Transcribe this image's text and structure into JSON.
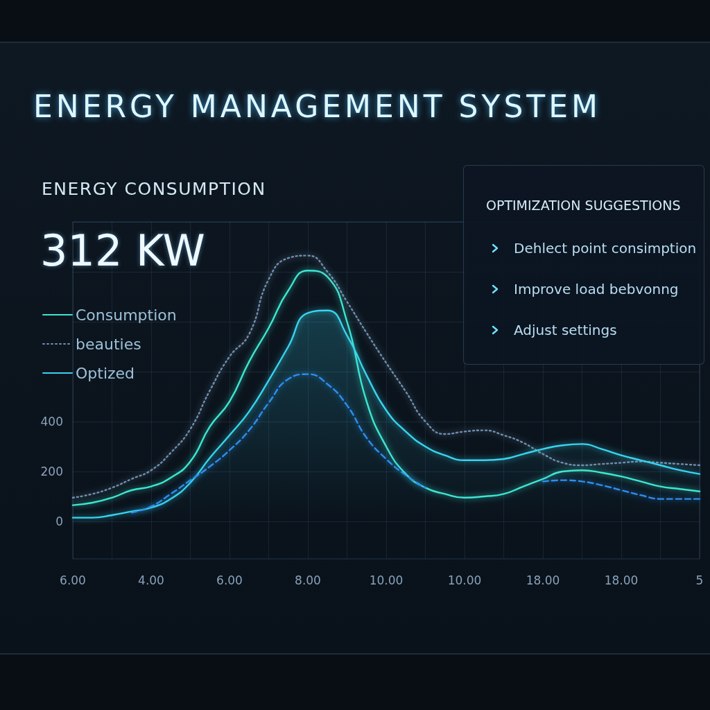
{
  "chart_data": [
    {
      "type": "line",
      "title": "ENERGY MANAGEMENT SYSTEM",
      "subtitle": "ENERGY CONSUMPTION",
      "annotations": [
        "312 KW"
      ],
      "categories": [
        "6.00",
        null,
        null,
        null,
        "4.00",
        null,
        null,
        null,
        "6.00",
        null,
        null,
        null,
        "8.00",
        null,
        null,
        null,
        "10.00",
        null,
        null,
        null,
        "10.00",
        null,
        null,
        null,
        "18.00",
        null,
        null,
        null,
        "18.00",
        null,
        null,
        null,
        "5"
      ],
      "series": [
        {
          "name": "Consumption",
          "color": "#3de6d2",
          "line_style": "solid",
          "values": [
            65,
            75,
            95,
            125,
            140,
            175,
            240,
            380,
            480,
            640,
            775,
            925,
            1005,
            980,
            800,
            480,
            300,
            190,
            135,
            110,
            95,
            100,
            110,
            140,
            170,
            200,
            205,
            195,
            180,
            160,
            140,
            130,
            120
          ]
        },
        {
          "name": "beauties",
          "color": "#6f8fae",
          "line_style": "dotted",
          "values": [
            95,
            110,
            135,
            170,
            205,
            275,
            370,
            525,
            660,
            750,
            970,
            1055,
            1065,
            1000,
            880,
            755,
            635,
            520,
            400,
            350,
            360,
            365,
            345,
            315,
            270,
            235,
            225,
            230,
            235,
            240,
            235,
            230,
            225
          ]
        },
        {
          "name": "Optized",
          "type": "area",
          "color": "#38d4ee",
          "line_style": "solid",
          "values": [
            15,
            15,
            25,
            40,
            55,
            90,
            155,
            255,
            345,
            440,
            565,
            700,
            835,
            845,
            745,
            585,
            445,
            360,
            300,
            265,
            245,
            245,
            250,
            270,
            290,
            305,
            310,
            290,
            265,
            245,
            225,
            205,
            190
          ]
        },
        {
          "color": "#2b8ff0",
          "line_style": "dashed",
          "values": [
            null,
            null,
            null,
            35,
            60,
            110,
            165,
            220,
            285,
            365,
            475,
            570,
            590,
            550,
            465,
            335,
            250,
            185,
            135,
            null,
            null,
            null,
            null,
            null,
            160,
            165,
            160,
            145,
            125,
            105,
            90,
            90,
            90
          ]
        }
      ],
      "ylim": [
        -150,
        1200
      ],
      "yticks": [
        0,
        200,
        400,
        {
          "value": 600,
          "label": null
        },
        {
          "value": 800,
          "label": null
        },
        {
          "value": 1000,
          "label": null
        },
        {
          "value": 1200,
          "label": null
        }
      ],
      "grid": true,
      "legend": "top left",
      "marker": "none"
    },
    {
      "type": "other",
      "title": "OPTIMIZATION SUGGESTIONS",
      "annotations": [
        "Dehlect point consimption",
        "Improve load bebvonng",
        "Adjust settings"
      ]
    }
  ]
}
